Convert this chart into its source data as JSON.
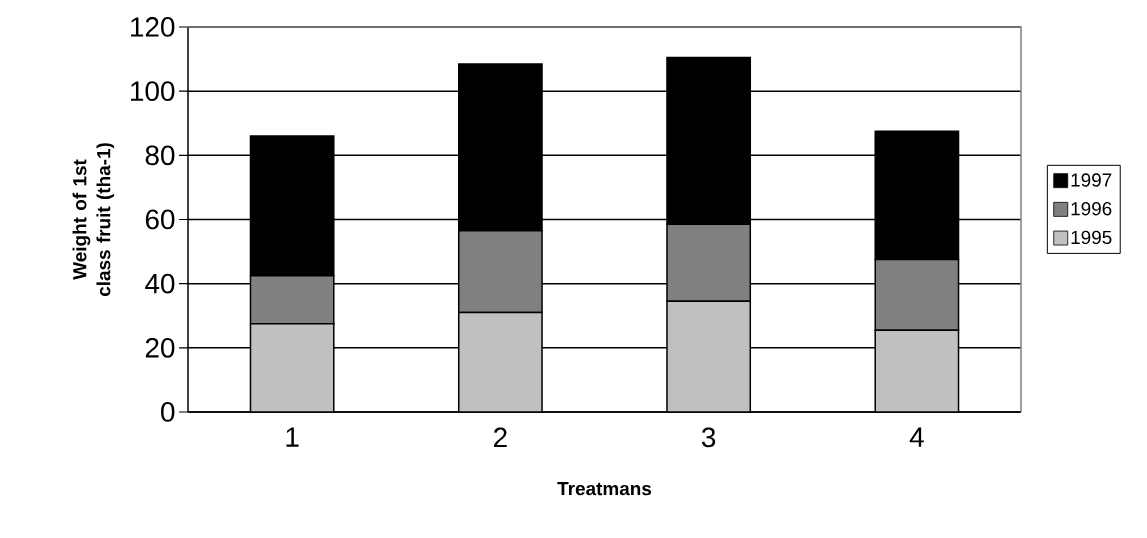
{
  "chart_data": {
    "type": "bar",
    "stacked": true,
    "xlabel": "Treatmans",
    "ylabel": "Weight of 1st class fruit (tha-1)",
    "categories": [
      "1",
      "2",
      "3",
      "4"
    ],
    "series": [
      {
        "name": "1995",
        "color": "#c0c0c0",
        "values": [
          27.5,
          31,
          34.5,
          25.5
        ]
      },
      {
        "name": "1996",
        "color": "#808080",
        "values": [
          15,
          25.5,
          24,
          22
        ]
      },
      {
        "name": "1997",
        "color": "#000000",
        "values": [
          43.5,
          52,
          52,
          40
        ]
      }
    ],
    "ylim": [
      0,
      120
    ],
    "yticks": [
      0,
      20,
      40,
      60,
      80,
      100,
      120
    ],
    "grid": "y",
    "legend": "right"
  }
}
